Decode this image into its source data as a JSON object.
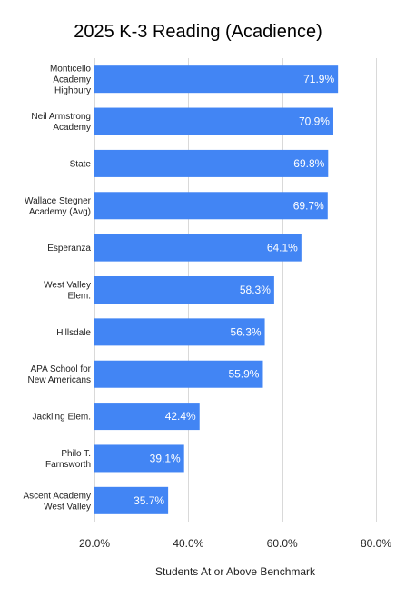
{
  "chart_data": {
    "type": "bar",
    "orientation": "horizontal",
    "title": "2025 K-3 Reading (Acadience)",
    "xlabel": "Students At or Above Benchmark",
    "ylabel": "",
    "categories": [
      [
        "Monticello",
        "Academy",
        "Highbury"
      ],
      [
        "Neil Armstrong",
        "Academy"
      ],
      [
        "State"
      ],
      [
        "Wallace Stegner",
        "Academy (Avg)"
      ],
      [
        "Esperanza"
      ],
      [
        "West Valley",
        "Elem."
      ],
      [
        "Hillsdale"
      ],
      [
        "APA School for",
        "New Americans"
      ],
      [
        "Jackling Elem."
      ],
      [
        "Philo T.",
        "Farnsworth"
      ],
      [
        "Ascent Academy",
        "West Valley"
      ]
    ],
    "values": [
      71.9,
      70.9,
      69.8,
      69.7,
      64.1,
      58.3,
      56.3,
      55.9,
      42.4,
      39.1,
      35.7
    ],
    "value_labels": [
      "71.9%",
      "70.9%",
      "69.8%",
      "69.7%",
      "64.1%",
      "58.3%",
      "56.3%",
      "55.9%",
      "42.4%",
      "39.1%",
      "35.7%"
    ],
    "xlim": [
      20,
      80
    ],
    "xticks": [
      20,
      40,
      60,
      80
    ],
    "xtick_labels": [
      "20.0%",
      "40.0%",
      "60.0%",
      "80.0%"
    ],
    "grid": true,
    "bar_color": "#4285f4",
    "value_label_color": "#ffffff"
  }
}
